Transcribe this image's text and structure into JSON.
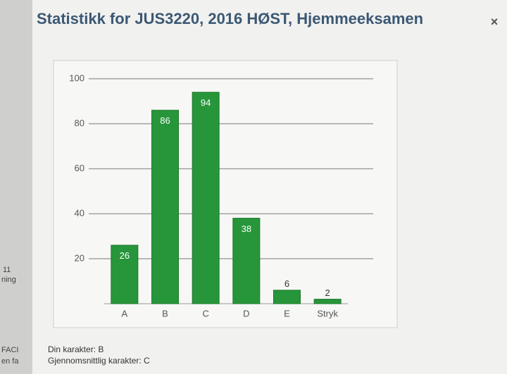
{
  "chart_data": {
    "type": "bar",
    "title": "Statistikk for JUS3220, 2016 HØST, Hjemmeeksamen",
    "categories": [
      "A",
      "B",
      "C",
      "D",
      "E",
      "Stryk"
    ],
    "values": [
      26,
      86,
      94,
      38,
      6,
      2
    ],
    "color": "#27953a",
    "ylim": [
      0,
      100
    ],
    "yticks": [
      20,
      40,
      60,
      80,
      100
    ],
    "grid": true
  },
  "close_button": "×",
  "summary": [
    "Din karakter: B",
    "Gjennomsnittlig karakter: C"
  ],
  "background_fragments": [
    "11",
    "ning",
    "FACI",
    "en fa"
  ]
}
